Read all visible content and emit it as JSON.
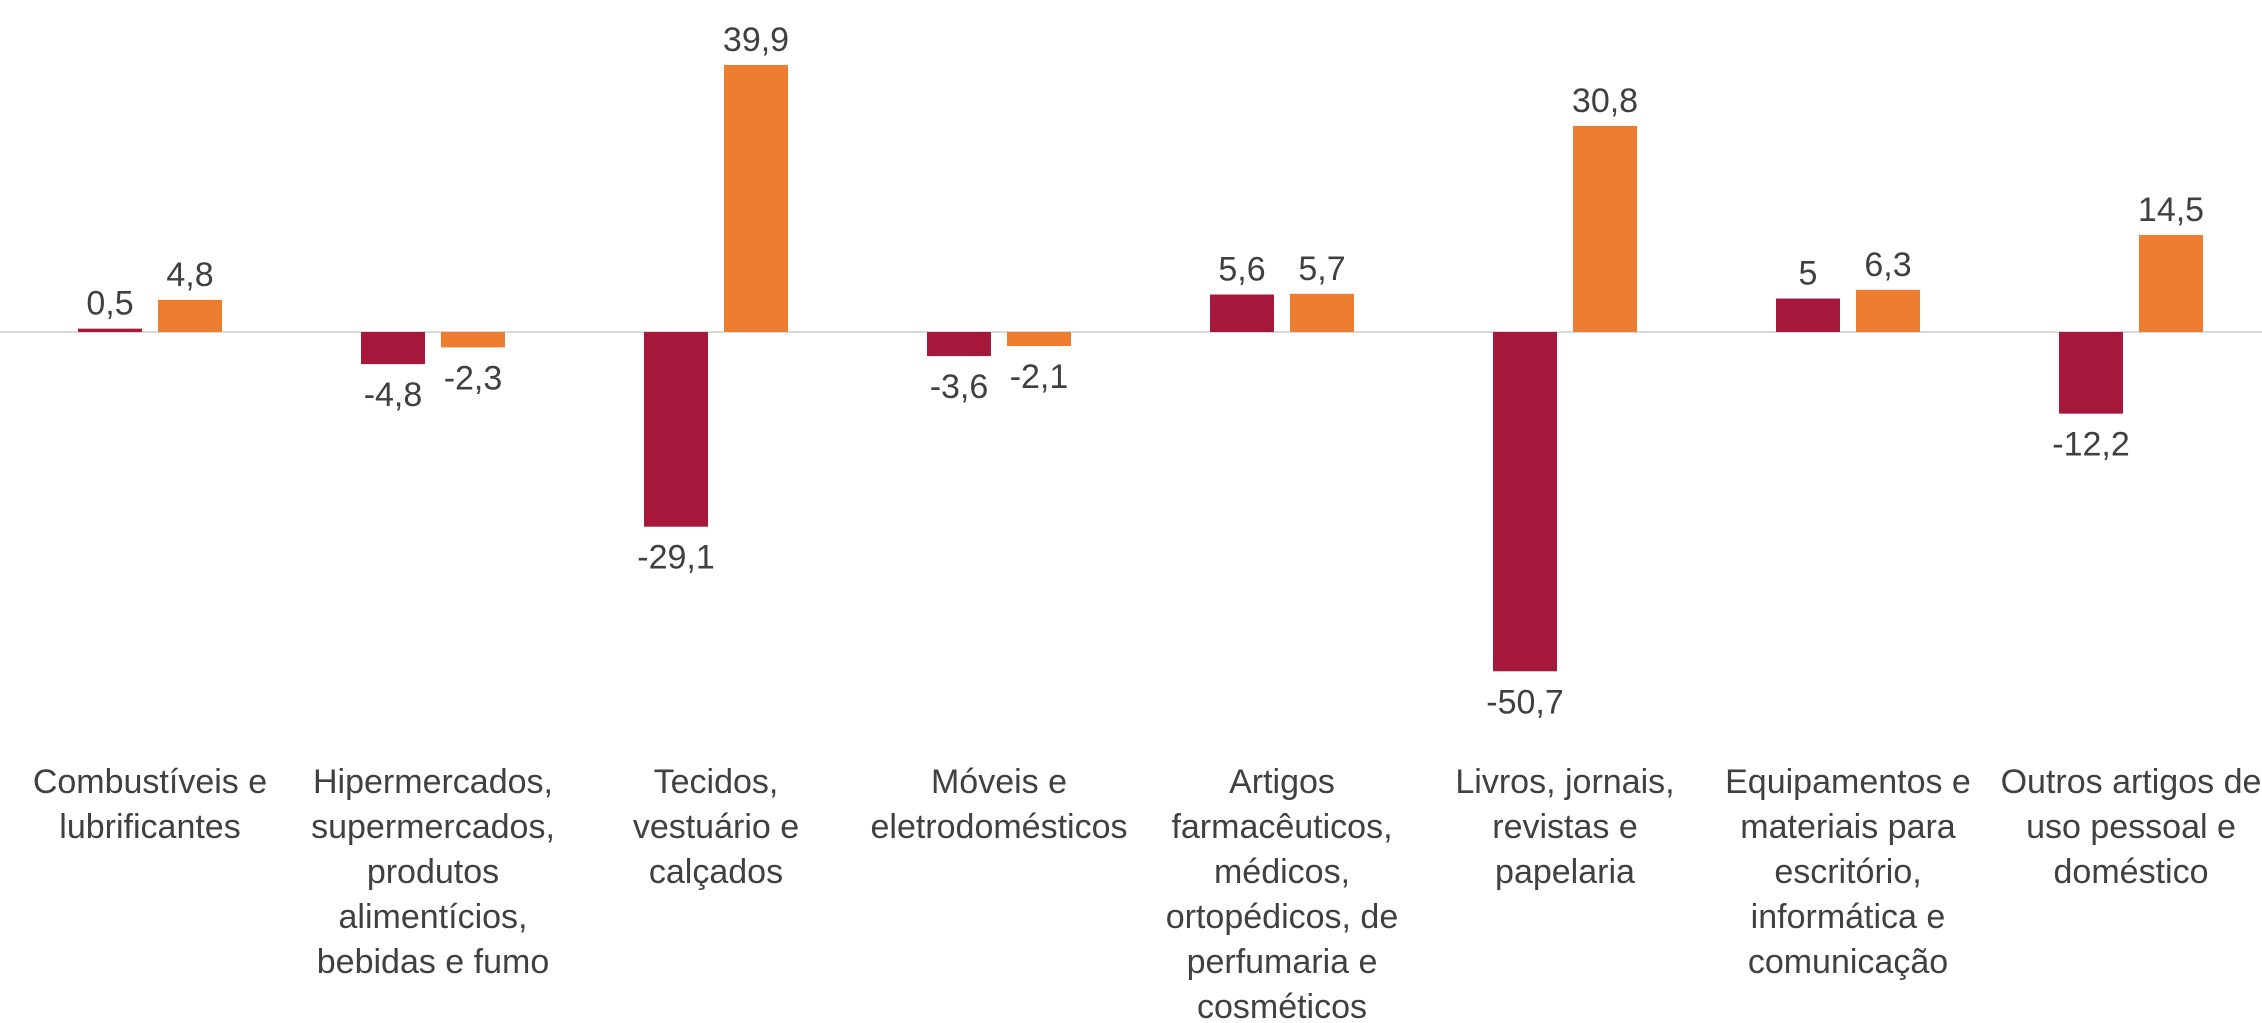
{
  "chart_data": {
    "type": "bar",
    "categories": [
      "Combustíveis e lubrificantes",
      "Hipermercados, supermercados, produtos alimentícios, bebidas e fumo",
      "Tecidos, vestuário e calçados",
      "Móveis e eletrodomésticos",
      "Artigos farmacêuticos, médicos, ortopédicos, de perfumaria e cosméticos",
      "Livros, jornais, revistas e papelaria",
      "Equipamentos e materiais para escritório, informática e comunicação",
      "Outros artigos de uso pessoal e doméstico"
    ],
    "series": [
      {
        "color": "#a6193c",
        "values": [
          0.5,
          -4.8,
          -29.1,
          -3.6,
          5.6,
          -50.7,
          5,
          -12.2
        ],
        "value_labels": [
          "0,5",
          "-4,8",
          "-29,1",
          "-3,6",
          "5,6",
          "-50,7",
          "5",
          "-12,2"
        ]
      },
      {
        "color": "#ed7d31",
        "values": [
          4.8,
          -2.3,
          39.9,
          -2.1,
          5.7,
          30.8,
          6.3,
          14.5
        ],
        "value_labels": [
          "4,8",
          "-2,3",
          "39,9",
          "-2,1",
          "5,7",
          "30,8",
          "6,3",
          "14,5"
        ]
      }
    ]
  }
}
